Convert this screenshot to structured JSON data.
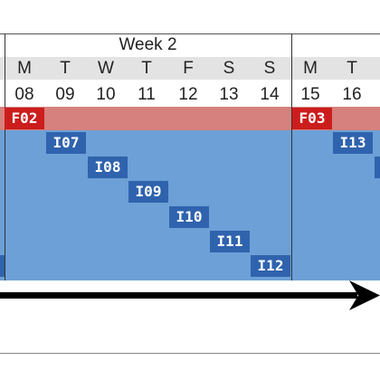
{
  "header": {
    "week_title": "Week 2"
  },
  "weekdays": [
    "M",
    "T",
    "W",
    "T",
    "F",
    "S",
    "S",
    "M",
    "T"
  ],
  "dates": [
    "08",
    "09",
    "10",
    "11",
    "12",
    "13",
    "14",
    "15",
    "16"
  ],
  "flags": [
    "F02",
    "F03"
  ],
  "iterations": [
    "I07",
    "I08",
    "I09",
    "I10",
    "I11",
    "I12",
    "I13"
  ],
  "colors": {
    "day_band": "#e3e3e3",
    "flag_band": "#d6817d",
    "flag_tag": "#cc1d1d",
    "iteration_area": "#6da0d6",
    "iteration_tag": "#2f63ad",
    "arrow": "#000000"
  },
  "icons": {
    "arrow": "right-arrow-icon"
  }
}
